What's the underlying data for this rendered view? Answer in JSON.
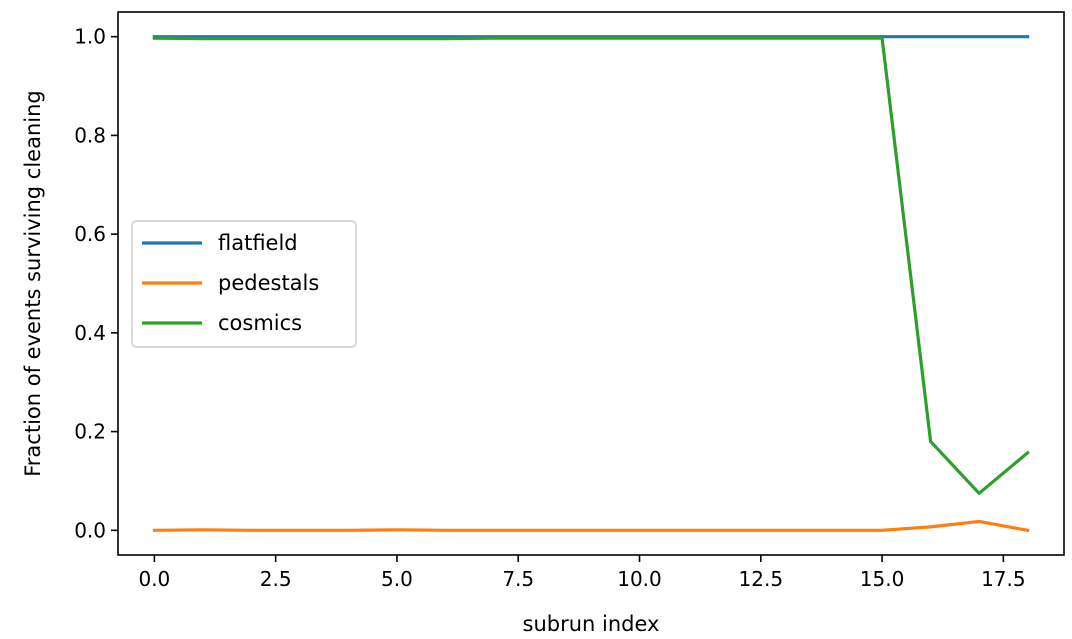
{
  "chart_data": {
    "type": "line",
    "title": "",
    "xlabel": "subrun index",
    "ylabel": "Fraction of events surviving cleaning",
    "xlim": [
      -0.75,
      18.75
    ],
    "ylim": [
      -0.05,
      1.05
    ],
    "xticks": [
      0.0,
      2.5,
      5.0,
      7.5,
      10.0,
      12.5,
      15.0,
      17.5
    ],
    "xtick_labels": [
      "0.0",
      "2.5",
      "5.0",
      "7.5",
      "10.0",
      "12.5",
      "15.0",
      "17.5"
    ],
    "yticks": [
      0.0,
      0.2,
      0.4,
      0.6,
      0.8,
      1.0
    ],
    "ytick_labels": [
      "0.0",
      "0.2",
      "0.4",
      "0.6",
      "0.8",
      "1.0"
    ],
    "grid": false,
    "legend_position": "center-left",
    "x": [
      0,
      1,
      2,
      3,
      4,
      5,
      6,
      7,
      8,
      9,
      10,
      11,
      12,
      13,
      14,
      15,
      16,
      17,
      18
    ],
    "series": [
      {
        "name": "flatfield",
        "color": "#1f77b4",
        "values": [
          1.0,
          1.0,
          1.0,
          1.0,
          1.0,
          1.0,
          1.0,
          1.0,
          1.0,
          1.0,
          1.0,
          1.0,
          1.0,
          1.0,
          1.0,
          1.0,
          1.0,
          1.0,
          1.0
        ]
      },
      {
        "name": "pedestals",
        "color": "#ff7f0e",
        "values": [
          0.0,
          0.001,
          0.0,
          0.0,
          0.0,
          0.001,
          0.0,
          0.0,
          0.0,
          0.0,
          0.0,
          0.0,
          0.0,
          0.0,
          0.0,
          0.0,
          0.007,
          0.018,
          0.0
        ]
      },
      {
        "name": "cosmics",
        "color": "#2ca02c",
        "values": [
          0.997,
          0.996,
          0.996,
          0.996,
          0.996,
          0.996,
          0.996,
          0.997,
          0.997,
          0.997,
          0.997,
          0.997,
          0.997,
          0.997,
          0.997,
          0.997,
          0.18,
          0.075,
          0.157
        ]
      }
    ]
  }
}
